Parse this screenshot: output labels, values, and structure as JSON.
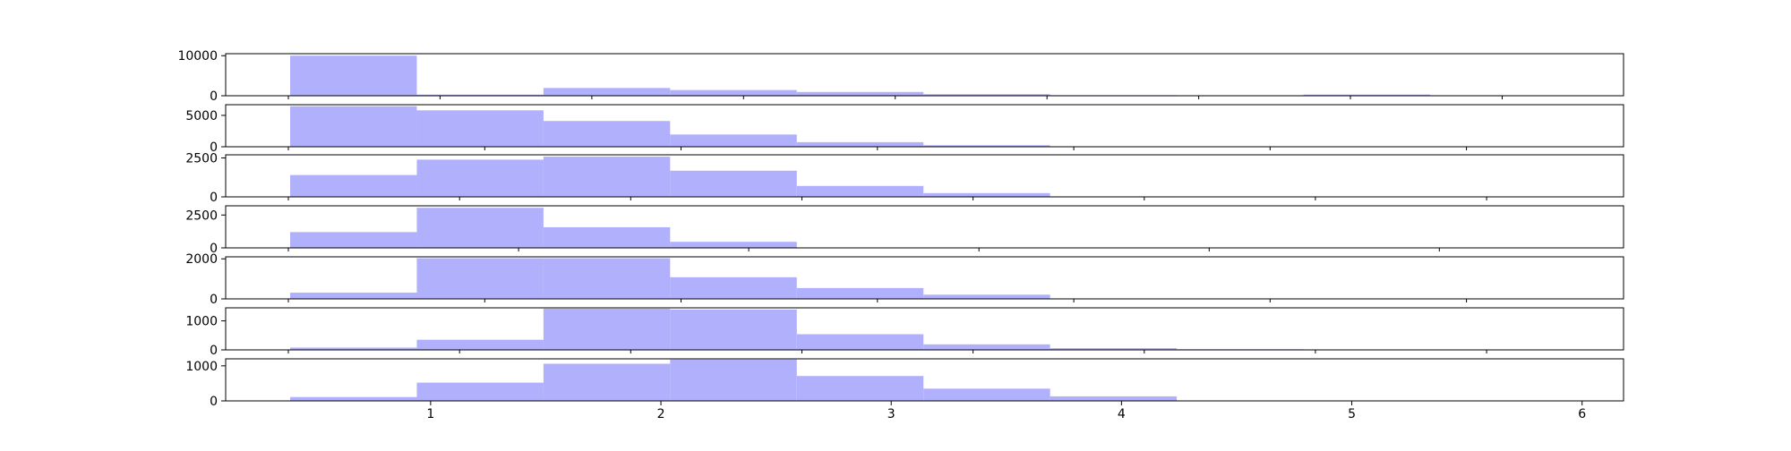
{
  "chart_data": [
    {
      "type": "bar",
      "bin_edges": [
        0.39,
        0.94,
        1.49,
        2.04,
        2.59,
        3.14,
        3.69,
        4.24,
        4.79,
        5.34
      ],
      "values": [
        10000,
        280,
        1940,
        1420,
        940,
        390,
        140,
        40,
        290
      ],
      "ylim": [
        0,
        10500
      ],
      "yticks": [
        0,
        10000
      ],
      "xticks_count": 9
    },
    {
      "type": "bar",
      "bin_edges": [
        0.39,
        0.94,
        1.49,
        2.04,
        2.59,
        3.14,
        3.69,
        4.24
      ],
      "values": [
        6450,
        5800,
        4100,
        1950,
        730,
        240,
        50
      ],
      "ylim": [
        0,
        6700
      ],
      "yticks": [
        0,
        5000
      ],
      "xticks_count": 7
    },
    {
      "type": "bar",
      "bin_edges": [
        0.39,
        0.94,
        1.49,
        2.04,
        2.59,
        3.14,
        3.69,
        4.24,
        4.79
      ],
      "values": [
        1400,
        2390,
        2580,
        1680,
        700,
        240,
        30,
        20
      ],
      "ylim": [
        0,
        2700
      ],
      "yticks": [
        0,
        2500
      ],
      "xticks_count": 8
    },
    {
      "type": "bar",
      "bin_edges": [
        0.39,
        0.94,
        1.49,
        2.04,
        2.59,
        3.14
      ],
      "values": [
        1200,
        3050,
        1570,
        460,
        10
      ],
      "ylim": [
        0,
        3200
      ],
      "yticks": [
        0,
        2500
      ],
      "xticks_count": 6
    },
    {
      "type": "bar",
      "bin_edges": [
        0.39,
        0.94,
        1.49,
        2.04,
        2.59,
        3.14,
        3.69,
        4.24
      ],
      "values": [
        310,
        2030,
        2030,
        1080,
        540,
        210,
        20
      ],
      "ylim": [
        0,
        2100
      ],
      "yticks": [
        0,
        2000
      ],
      "xticks_count": 7
    },
    {
      "type": "bar",
      "bin_edges": [
        0.39,
        0.94,
        1.49,
        2.04,
        2.59,
        3.14,
        3.69,
        4.24,
        4.79
      ],
      "values": [
        80,
        350,
        1420,
        1390,
        540,
        190,
        60,
        20
      ],
      "ylim": [
        0,
        1450
      ],
      "yticks": [
        0,
        1000
      ],
      "xticks_count": 8
    },
    {
      "type": "bar",
      "bin_edges": [
        0.39,
        0.94,
        1.49,
        2.04,
        2.59,
        3.14,
        3.69,
        4.24,
        4.79
      ],
      "values": [
        110,
        520,
        1060,
        1180,
        710,
        350,
        130,
        10
      ],
      "ylim": [
        0,
        1200
      ],
      "yticks": [
        0,
        1000
      ],
      "xlim": [
        0.11,
        6.18
      ],
      "xticks": [
        1,
        2,
        3,
        4,
        5,
        6
      ]
    }
  ],
  "style": {
    "bar_color": "#b0b0fc",
    "axis_color": "#000000"
  }
}
